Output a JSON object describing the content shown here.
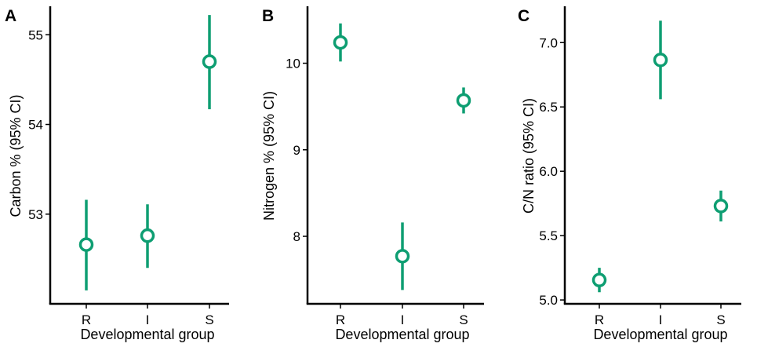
{
  "colors": {
    "series": "#0e9e72",
    "axis": "#000000",
    "background": "#ffffff"
  },
  "chart_data": [
    {
      "type": "pointrange",
      "panel": "A",
      "categories": [
        "R",
        "I",
        "S"
      ],
      "series": [
        {
          "mean": [
            52.66,
            52.76,
            54.7
          ],
          "lower": [
            52.15,
            52.4,
            54.17
          ],
          "upper": [
            53.16,
            53.11,
            55.22
          ]
        }
      ],
      "xlabel": "Developmental group",
      "ylabel": "Carbon % (95% CI)",
      "ylim": [
        52.0,
        55.3
      ],
      "yticks": [
        53,
        54,
        55
      ],
      "ytick_labels": [
        "53",
        "54",
        "55"
      ],
      "grid": false,
      "legend": "none"
    },
    {
      "type": "pointrange",
      "panel": "B",
      "categories": [
        "R",
        "I",
        "S"
      ],
      "series": [
        {
          "mean": [
            10.24,
            7.77,
            9.57
          ],
          "lower": [
            10.02,
            7.38,
            9.42
          ],
          "upper": [
            10.46,
            8.16,
            9.72
          ]
        }
      ],
      "xlabel": "Developmental group",
      "ylabel": "Nitrogen % (95% CI)",
      "ylim": [
        7.22,
        10.64
      ],
      "yticks": [
        8,
        9,
        10
      ],
      "ytick_labels": [
        "8",
        "9",
        "10"
      ],
      "grid": false,
      "legend": "none"
    },
    {
      "type": "pointrange",
      "panel": "C",
      "categories": [
        "R",
        "I",
        "S"
      ],
      "series": [
        {
          "mean": [
            5.155,
            6.865,
            5.73
          ],
          "lower": [
            5.06,
            6.56,
            5.61
          ],
          "upper": [
            5.25,
            7.17,
            5.85
          ]
        }
      ],
      "xlabel": "Developmental group",
      "ylabel": "C/N ratio (95% CI)",
      "ylim": [
        4.97,
        7.27
      ],
      "yticks": [
        5.0,
        5.5,
        6.0,
        6.5,
        7.0
      ],
      "ytick_labels": [
        "5.0",
        "5.5",
        "6.0",
        "6.5",
        "7.0"
      ],
      "grid": false,
      "legend": "none"
    }
  ]
}
